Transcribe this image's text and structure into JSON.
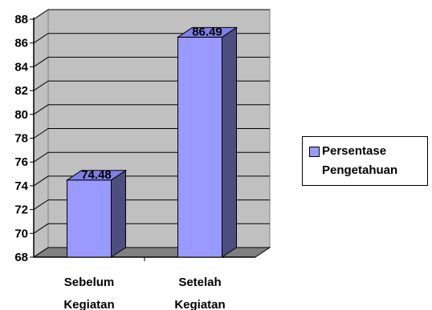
{
  "chart_data": {
    "type": "bar",
    "categories": [
      "Sebelum Kegiatan",
      "Setelah Kegiatan"
    ],
    "category_lines": [
      [
        "Sebelum",
        "Kegiatan"
      ],
      [
        "Setelah",
        "Kegiatan"
      ]
    ],
    "series": [
      {
        "name": "Persentase Pengetahuan",
        "values": [
          74.48,
          86.49
        ],
        "labels": [
          "74.48",
          "86.49"
        ]
      }
    ],
    "legend_lines": [
      "Persentase",
      "Pengetahuan"
    ],
    "ylim": [
      68,
      88
    ],
    "yticks": [
      68,
      70,
      72,
      74,
      76,
      78,
      80,
      82,
      84,
      86,
      88
    ],
    "grid": true,
    "legend_position": "right",
    "three_d": true,
    "colors": {
      "bar_face": "#9999ff",
      "bar_top": "#8080e8",
      "bar_side": "#4d4d80",
      "wall": "#c0c0c0",
      "floor": "#808080"
    }
  }
}
